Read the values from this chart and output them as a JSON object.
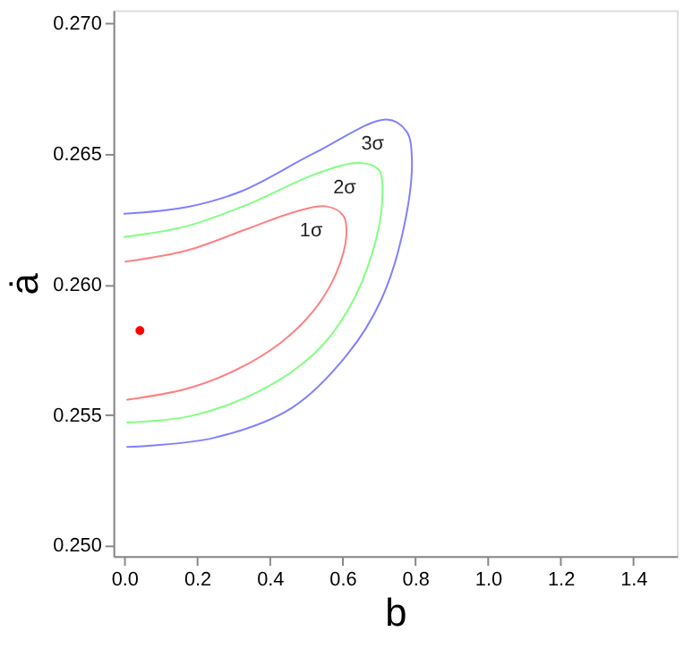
{
  "chart_data": {
    "type": "line",
    "xlabel": "b",
    "ylabel": "ȧ",
    "xlim": [
      -0.03,
      1.52
    ],
    "ylim": [
      0.2496,
      0.2705
    ],
    "xticks": [
      {
        "value": 0.0,
        "label": "0.0"
      },
      {
        "value": 0.2,
        "label": "0.2"
      },
      {
        "value": 0.4,
        "label": "0.4"
      },
      {
        "value": 0.6,
        "label": "0.6"
      },
      {
        "value": 0.8,
        "label": "0.8"
      },
      {
        "value": 1.0,
        "label": "1.0"
      },
      {
        "value": 1.2,
        "label": "1.2"
      },
      {
        "value": 1.4,
        "label": "1.4"
      }
    ],
    "yticks": [
      {
        "value": 0.25,
        "label": "0.250"
      },
      {
        "value": 0.255,
        "label": "0.255"
      },
      {
        "value": 0.26,
        "label": "0.260"
      },
      {
        "value": 0.265,
        "label": "0.265"
      },
      {
        "value": 0.27,
        "label": "0.270"
      }
    ],
    "grid": false,
    "marker": "none",
    "line_style": "solid",
    "series": [
      {
        "color": "#ff8080",
        "x": [
          0.003,
          0.17,
          0.338,
          0.461,
          0.553,
          0.602,
          0.611,
          0.584,
          0.522,
          0.43,
          0.307,
          0.169,
          0.008
        ],
        "values": [
          0.26088,
          0.2613,
          0.26213,
          0.26275,
          0.263,
          0.26265,
          0.26192,
          0.26047,
          0.25902,
          0.25777,
          0.25673,
          0.256,
          0.25559
        ]
      },
      {
        "color": "#80ff80",
        "x": [
          0.0,
          0.169,
          0.338,
          0.522,
          0.645,
          0.699,
          0.71,
          0.684,
          0.615,
          0.522,
          0.369,
          0.184,
          0.008
        ],
        "values": [
          0.26182,
          0.26223,
          0.26306,
          0.26421,
          0.26466,
          0.26441,
          0.26338,
          0.2613,
          0.25902,
          0.25735,
          0.2559,
          0.25497,
          0.25472
        ]
      },
      {
        "color": "#8080ff",
        "x": [
          0.0,
          0.169,
          0.323,
          0.522,
          0.722,
          0.776,
          0.791,
          0.768,
          0.707,
          0.615,
          0.461,
          0.246,
          0.008
        ],
        "values": [
          0.26271,
          0.26296,
          0.26358,
          0.26503,
          0.26632,
          0.26587,
          0.26483,
          0.26213,
          0.25943,
          0.25735,
          0.25528,
          0.25413,
          0.25378
        ]
      },
      {
        "type": "scatter",
        "marker": "circle",
        "color": "#ff0000",
        "x": [
          0.043
        ],
        "values": [
          0.25824
        ]
      }
    ],
    "annotations": [
      "1σ",
      "2σ",
      "3σ"
    ]
  }
}
